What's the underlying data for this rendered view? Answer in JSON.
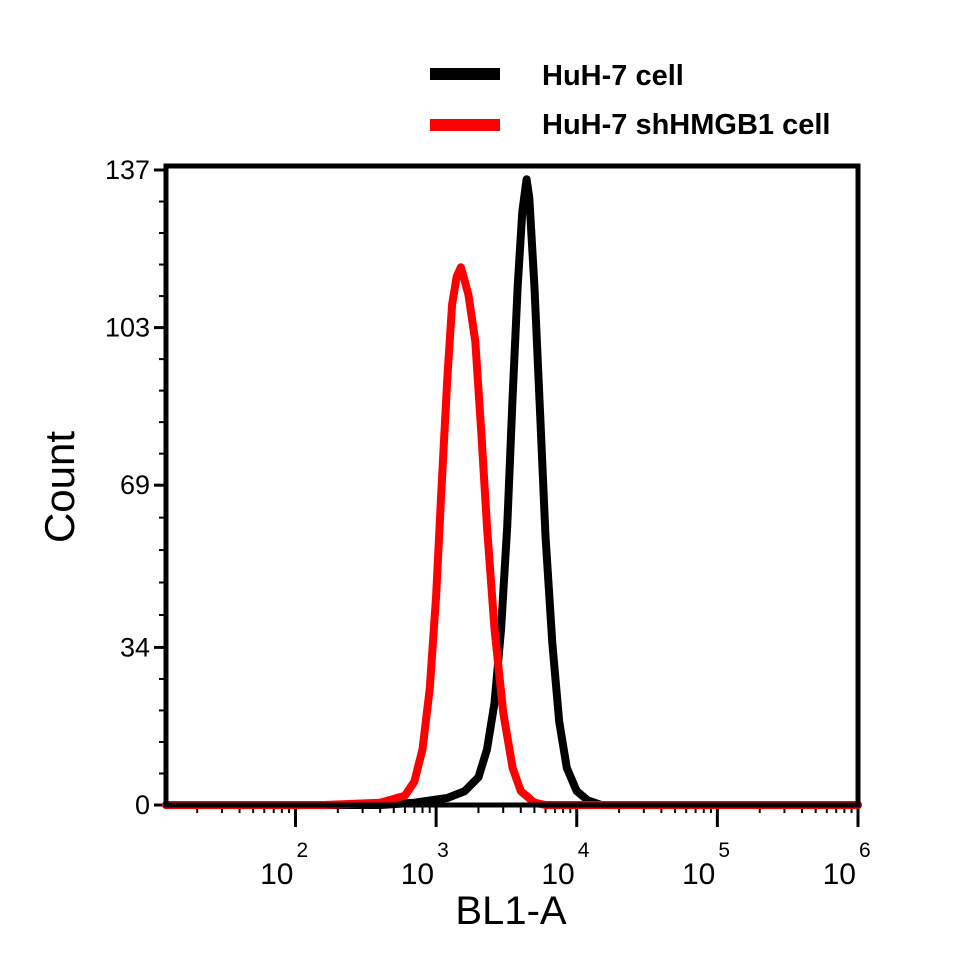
{
  "chart_data": {
    "type": "line",
    "xlabel": "BL1-A",
    "ylabel": "Count",
    "xscale": "log",
    "xlim": [
      12,
      1000000
    ],
    "ylim": [
      0,
      137
    ],
    "x_ticks": [
      {
        "value": 100,
        "base": "10",
        "exp": "2"
      },
      {
        "value": 1000,
        "base": "10",
        "exp": "3"
      },
      {
        "value": 10000,
        "base": "10",
        "exp": "4"
      },
      {
        "value": 100000,
        "base": "10",
        "exp": "5"
      },
      {
        "value": 1000000,
        "base": "10",
        "exp": "6"
      }
    ],
    "y_ticks": [
      0,
      34,
      69,
      103,
      137
    ],
    "grid": false,
    "legend_position": "top",
    "series": [
      {
        "name": "HuH-7 cell",
        "color": "#000000",
        "points": [
          [
            12,
            0
          ],
          [
            400,
            0
          ],
          [
            700,
            0.5
          ],
          [
            900,
            1
          ],
          [
            1200,
            1.5
          ],
          [
            1600,
            3
          ],
          [
            2000,
            6
          ],
          [
            2300,
            12
          ],
          [
            2600,
            22
          ],
          [
            2900,
            38
          ],
          [
            3200,
            60
          ],
          [
            3500,
            88
          ],
          [
            3800,
            112
          ],
          [
            4100,
            128
          ],
          [
            4400,
            135
          ],
          [
            4600,
            131
          ],
          [
            5000,
            112
          ],
          [
            5500,
            84
          ],
          [
            6000,
            58
          ],
          [
            6700,
            35
          ],
          [
            7500,
            18
          ],
          [
            8500,
            8
          ],
          [
            10000,
            3
          ],
          [
            12000,
            1
          ],
          [
            15000,
            0
          ],
          [
            1000000,
            0
          ]
        ]
      },
      {
        "name": "HuH-7 shHMGB1 cell",
        "color": "#ff0000",
        "points": [
          [
            12,
            0
          ],
          [
            160,
            0
          ],
          [
            400,
            0.5
          ],
          [
            600,
            2
          ],
          [
            700,
            5
          ],
          [
            800,
            12
          ],
          [
            900,
            25
          ],
          [
            1000,
            45
          ],
          [
            1100,
            70
          ],
          [
            1200,
            92
          ],
          [
            1300,
            108
          ],
          [
            1400,
            114
          ],
          [
            1500,
            116
          ],
          [
            1600,
            113
          ],
          [
            1700,
            110
          ],
          [
            1900,
            100
          ],
          [
            2100,
            80
          ],
          [
            2300,
            60
          ],
          [
            2600,
            38
          ],
          [
            3000,
            20
          ],
          [
            3500,
            8
          ],
          [
            4000,
            3
          ],
          [
            5000,
            0.5
          ],
          [
            6000,
            0
          ],
          [
            1000000,
            0
          ]
        ]
      }
    ]
  }
}
